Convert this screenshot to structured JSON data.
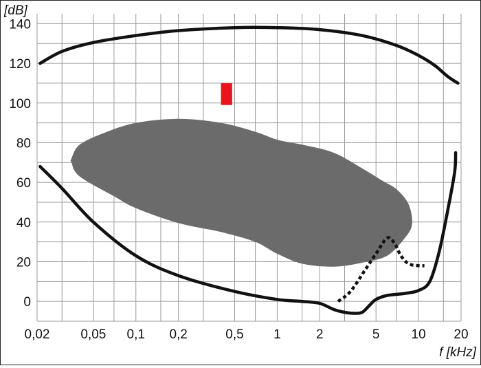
{
  "chart_data": {
    "type": "line",
    "title": "",
    "xlabel": "f [kHz]",
    "ylabel": "[dB]",
    "x_scale": "log",
    "xlim": [
      0.02,
      20
    ],
    "ylim": [
      -10,
      145
    ],
    "grid": true,
    "x_ticks": [
      {
        "value": 0.02,
        "label": "0,02"
      },
      {
        "value": 0.05,
        "label": "0,05"
      },
      {
        "value": 0.1,
        "label": "0,1"
      },
      {
        "value": 0.2,
        "label": "0,2"
      },
      {
        "value": 0.5,
        "label": "0,5"
      },
      {
        "value": 1,
        "label": "1"
      },
      {
        "value": 2,
        "label": "2"
      },
      {
        "value": 5,
        "label": "5"
      },
      {
        "value": 10,
        "label": "10"
      },
      {
        "value": 20,
        "label": "20"
      }
    ],
    "x_gridlines": [
      0.02,
      0.03,
      0.05,
      0.07,
      0.1,
      0.15,
      0.2,
      0.3,
      0.5,
      0.7,
      1,
      1.5,
      2,
      3,
      5,
      7,
      10,
      15,
      20
    ],
    "y_ticks": [
      0,
      20,
      40,
      60,
      80,
      100,
      120,
      140
    ],
    "y_gridlines": [
      -10,
      0,
      10,
      20,
      30,
      40,
      50,
      60,
      70,
      80,
      90,
      100,
      110,
      120,
      130,
      140
    ],
    "colors": {
      "curve": "#111111",
      "region": "#6b6b6b",
      "marker": "#e8141e"
    },
    "series": [
      {
        "style": "solid",
        "points": [
          [
            0.021,
            120
          ],
          [
            0.03,
            126
          ],
          [
            0.05,
            130.5
          ],
          [
            0.1,
            134
          ],
          [
            0.2,
            136.5
          ],
          [
            0.5,
            138
          ],
          [
            1,
            138
          ],
          [
            2,
            137
          ],
          [
            4,
            134
          ],
          [
            7,
            129
          ],
          [
            10,
            124
          ],
          [
            13,
            119
          ],
          [
            16,
            113.5
          ],
          [
            19,
            110
          ]
        ]
      },
      {
        "style": "solid",
        "points": [
          [
            0.021,
            68
          ],
          [
            0.03,
            57
          ],
          [
            0.05,
            40
          ],
          [
            0.1,
            23
          ],
          [
            0.2,
            13
          ],
          [
            0.5,
            5
          ],
          [
            1,
            1
          ],
          [
            1.5,
            0
          ],
          [
            2,
            -1
          ],
          [
            2.5,
            -4
          ],
          [
            3,
            -5.5
          ],
          [
            3.5,
            -6
          ],
          [
            4,
            -5.5
          ],
          [
            4.5,
            -2
          ],
          [
            5,
            1
          ],
          [
            6,
            3
          ],
          [
            8,
            4
          ],
          [
            10,
            5.5
          ],
          [
            12,
            10
          ],
          [
            14,
            25
          ],
          [
            16,
            45
          ],
          [
            18,
            65
          ],
          [
            18.3,
            75
          ]
        ]
      },
      {
        "style": "dotted",
        "points": [
          [
            2.7,
            0
          ],
          [
            3.3,
            5
          ],
          [
            4.2,
            16
          ],
          [
            5,
            24
          ],
          [
            6,
            32
          ],
          [
            6.8,
            29
          ],
          [
            7.5,
            23
          ],
          [
            8.5,
            19
          ],
          [
            10,
            18
          ],
          [
            11,
            18
          ]
        ]
      }
    ],
    "region": {
      "name": "",
      "points": [
        [
          0.035,
          70
        ],
        [
          0.04,
          63
        ],
        [
          0.07,
          53
        ],
        [
          0.1,
          47
        ],
        [
          0.2,
          39.5
        ],
        [
          0.4,
          35
        ],
        [
          0.7,
          30
        ],
        [
          1,
          24
        ],
        [
          1.5,
          19
        ],
        [
          2.5,
          17.5
        ],
        [
          4,
          19.5
        ],
        [
          6,
          23
        ],
        [
          8,
          32
        ],
        [
          9,
          39
        ],
        [
          8.5,
          49
        ],
        [
          7,
          56.5
        ],
        [
          5.5,
          61
        ],
        [
          4,
          67
        ],
        [
          2.5,
          75
        ],
        [
          1.5,
          79
        ],
        [
          1,
          81.5
        ],
        [
          0.7,
          85.5
        ],
        [
          0.4,
          90
        ],
        [
          0.2,
          92
        ],
        [
          0.1,
          90
        ],
        [
          0.06,
          85
        ],
        [
          0.04,
          79
        ],
        [
          0.035,
          72
        ]
      ]
    },
    "marker": {
      "x_range": [
        0.4,
        0.48
      ],
      "y_range": [
        99,
        110
      ]
    }
  }
}
